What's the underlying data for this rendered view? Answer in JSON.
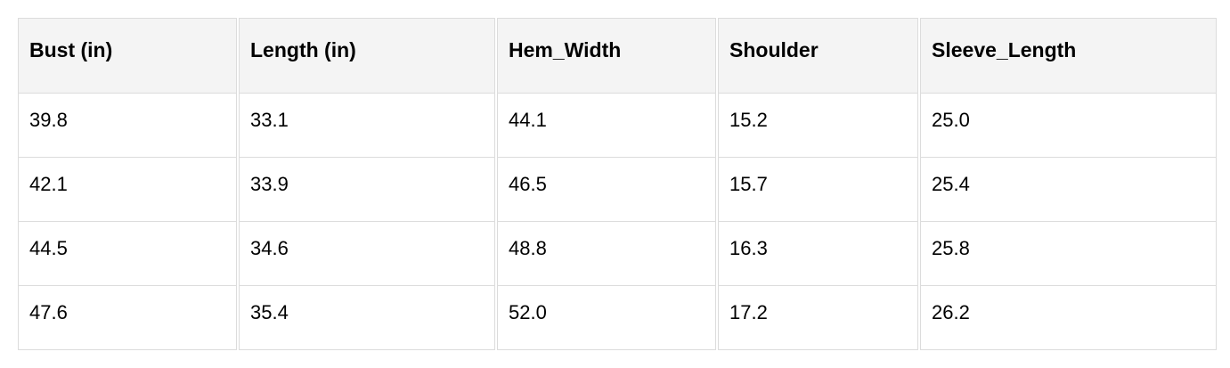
{
  "table": {
    "headers": [
      "Bust (in)",
      "Length (in)",
      "Hem_Width",
      "Shoulder",
      "Sleeve_Length"
    ],
    "rows": [
      [
        "39.8",
        "33.1",
        "44.1",
        "15.2",
        "25.0"
      ],
      [
        "42.1",
        "33.9",
        "46.5",
        "15.7",
        "25.4"
      ],
      [
        "44.5",
        "34.6",
        "48.8",
        "16.3",
        "25.8"
      ],
      [
        "47.6",
        "35.4",
        "52.0",
        "17.2",
        "26.2"
      ]
    ]
  }
}
